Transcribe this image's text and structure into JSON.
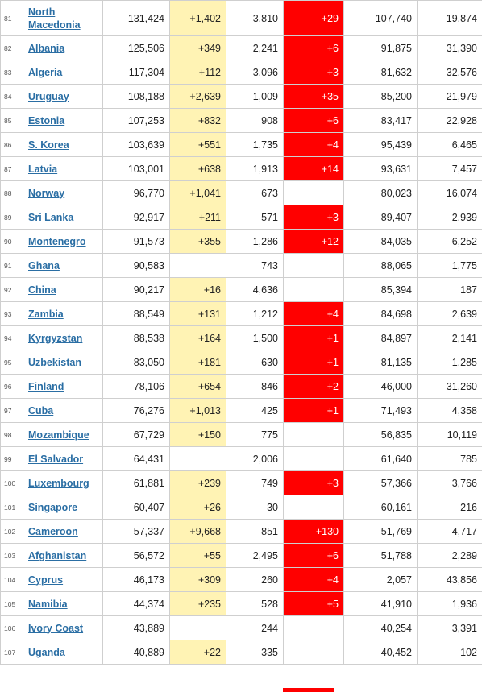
{
  "rows": [
    {
      "idx": "81",
      "country": "North Macedonia",
      "total": "131,424",
      "new_cases": "+1,402",
      "deaths": "3,810",
      "new_deaths": "+29",
      "recovered": "107,740",
      "active": "19,874"
    },
    {
      "idx": "82",
      "country": "Albania",
      "total": "125,506",
      "new_cases": "+349",
      "deaths": "2,241",
      "new_deaths": "+6",
      "recovered": "91,875",
      "active": "31,390"
    },
    {
      "idx": "83",
      "country": "Algeria",
      "total": "117,304",
      "new_cases": "+112",
      "deaths": "3,096",
      "new_deaths": "+3",
      "recovered": "81,632",
      "active": "32,576"
    },
    {
      "idx": "84",
      "country": "Uruguay",
      "total": "108,188",
      "new_cases": "+2,639",
      "deaths": "1,009",
      "new_deaths": "+35",
      "recovered": "85,200",
      "active": "21,979"
    },
    {
      "idx": "85",
      "country": "Estonia",
      "total": "107,253",
      "new_cases": "+832",
      "deaths": "908",
      "new_deaths": "+6",
      "recovered": "83,417",
      "active": "22,928"
    },
    {
      "idx": "86",
      "country": "S. Korea",
      "total": "103,639",
      "new_cases": "+551",
      "deaths": "1,735",
      "new_deaths": "+4",
      "recovered": "95,439",
      "active": "6,465"
    },
    {
      "idx": "87",
      "country": "Latvia",
      "total": "103,001",
      "new_cases": "+638",
      "deaths": "1,913",
      "new_deaths": "+14",
      "recovered": "93,631",
      "active": "7,457"
    },
    {
      "idx": "88",
      "country": "Norway",
      "total": "96,770",
      "new_cases": "+1,041",
      "deaths": "673",
      "new_deaths": "",
      "recovered": "80,023",
      "active": "16,074"
    },
    {
      "idx": "89",
      "country": "Sri Lanka",
      "total": "92,917",
      "new_cases": "+211",
      "deaths": "571",
      "new_deaths": "+3",
      "recovered": "89,407",
      "active": "2,939"
    },
    {
      "idx": "90",
      "country": "Montenegro",
      "total": "91,573",
      "new_cases": "+355",
      "deaths": "1,286",
      "new_deaths": "+12",
      "recovered": "84,035",
      "active": "6,252"
    },
    {
      "idx": "91",
      "country": "Ghana",
      "total": "90,583",
      "new_cases": "",
      "deaths": "743",
      "new_deaths": "",
      "recovered": "88,065",
      "active": "1,775"
    },
    {
      "idx": "92",
      "country": "China",
      "total": "90,217",
      "new_cases": "+16",
      "deaths": "4,636",
      "new_deaths": "",
      "recovered": "85,394",
      "active": "187"
    },
    {
      "idx": "93",
      "country": "Zambia",
      "total": "88,549",
      "new_cases": "+131",
      "deaths": "1,212",
      "new_deaths": "+4",
      "recovered": "84,698",
      "active": "2,639"
    },
    {
      "idx": "94",
      "country": "Kyrgyzstan",
      "total": "88,538",
      "new_cases": "+164",
      "deaths": "1,500",
      "new_deaths": "+1",
      "recovered": "84,897",
      "active": "2,141"
    },
    {
      "idx": "95",
      "country": "Uzbekistan",
      "total": "83,050",
      "new_cases": "+181",
      "deaths": "630",
      "new_deaths": "+1",
      "recovered": "81,135",
      "active": "1,285"
    },
    {
      "idx": "96",
      "country": "Finland",
      "total": "78,106",
      "new_cases": "+654",
      "deaths": "846",
      "new_deaths": "+2",
      "recovered": "46,000",
      "active": "31,260"
    },
    {
      "idx": "97",
      "country": "Cuba",
      "total": "76,276",
      "new_cases": "+1,013",
      "deaths": "425",
      "new_deaths": "+1",
      "recovered": "71,493",
      "active": "4,358"
    },
    {
      "idx": "98",
      "country": "Mozambique",
      "total": "67,729",
      "new_cases": "+150",
      "deaths": "775",
      "new_deaths": "",
      "recovered": "56,835",
      "active": "10,119"
    },
    {
      "idx": "99",
      "country": "El Salvador",
      "total": "64,431",
      "new_cases": "",
      "deaths": "2,006",
      "new_deaths": "",
      "recovered": "61,640",
      "active": "785"
    },
    {
      "idx": "100",
      "country": "Luxembourg",
      "total": "61,881",
      "new_cases": "+239",
      "deaths": "749",
      "new_deaths": "+3",
      "recovered": "57,366",
      "active": "3,766"
    },
    {
      "idx": "101",
      "country": "Singapore",
      "total": "60,407",
      "new_cases": "+26",
      "deaths": "30",
      "new_deaths": "",
      "recovered": "60,161",
      "active": "216"
    },
    {
      "idx": "102",
      "country": "Cameroon",
      "total": "57,337",
      "new_cases": "+9,668",
      "deaths": "851",
      "new_deaths": "+130",
      "recovered": "51,769",
      "active": "4,717"
    },
    {
      "idx": "103",
      "country": "Afghanistan",
      "total": "56,572",
      "new_cases": "+55",
      "deaths": "2,495",
      "new_deaths": "+6",
      "recovered": "51,788",
      "active": "2,289"
    },
    {
      "idx": "104",
      "country": "Cyprus",
      "total": "46,173",
      "new_cases": "+309",
      "deaths": "260",
      "new_deaths": "+4",
      "recovered": "2,057",
      "active": "43,856"
    },
    {
      "idx": "105",
      "country": "Namibia",
      "total": "44,374",
      "new_cases": "+235",
      "deaths": "528",
      "new_deaths": "+5",
      "recovered": "41,910",
      "active": "1,936"
    },
    {
      "idx": "106",
      "country": "Ivory Coast",
      "total": "43,889",
      "new_cases": "",
      "deaths": "244",
      "new_deaths": "",
      "recovered": "40,254",
      "active": "3,391"
    },
    {
      "idx": "107",
      "country": "Uganda",
      "total": "40,889",
      "new_cases": "+22",
      "deaths": "335",
      "new_deaths": "",
      "recovered": "40,452",
      "active": "102"
    }
  ],
  "colors": {
    "new_cases_bg": "#fff3b4",
    "new_deaths_bg": "#ff0000",
    "link": "#2a6ea4"
  }
}
